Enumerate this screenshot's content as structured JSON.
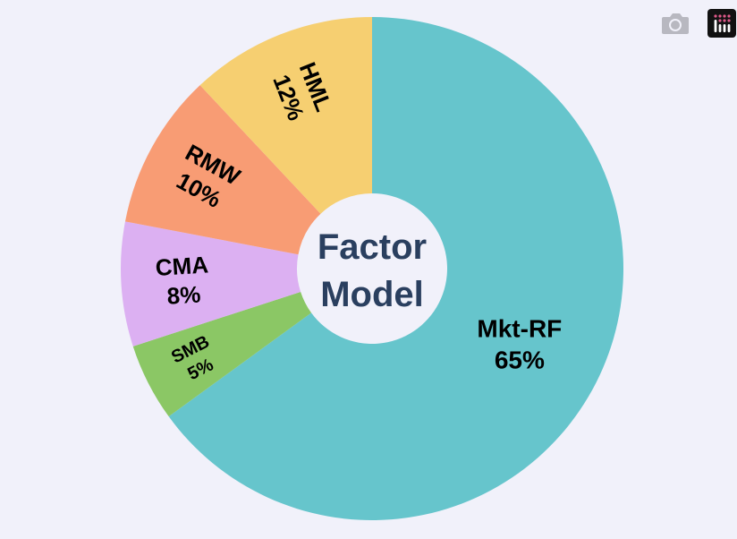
{
  "chart_data": {
    "type": "pie",
    "hole": true,
    "center_text": [
      "Factor",
      "Model"
    ],
    "direction": "clockwise",
    "start_angle_deg": 0,
    "slices": [
      {
        "label": "Mkt-RF",
        "value": 65,
        "text": "65%",
        "color": "#66c5cc"
      },
      {
        "label": "SMB",
        "value": 5,
        "text": "5%",
        "color": "#8bc765"
      },
      {
        "label": "CMA",
        "value": 8,
        "text": "8%",
        "color": "#dcb0f2"
      },
      {
        "label": "RMW",
        "value": 10,
        "text": "10%",
        "color": "#f89c74"
      },
      {
        "label": "HML",
        "value": 12,
        "text": "12%",
        "color": "#f6cf71"
      }
    ]
  },
  "colors": {
    "background": "#f1f1fa",
    "center_text": "#2a3f5f"
  },
  "modebar": {
    "buttons": [
      {
        "icon": "camera-icon"
      },
      {
        "icon": "plotly-logo-icon"
      }
    ]
  }
}
